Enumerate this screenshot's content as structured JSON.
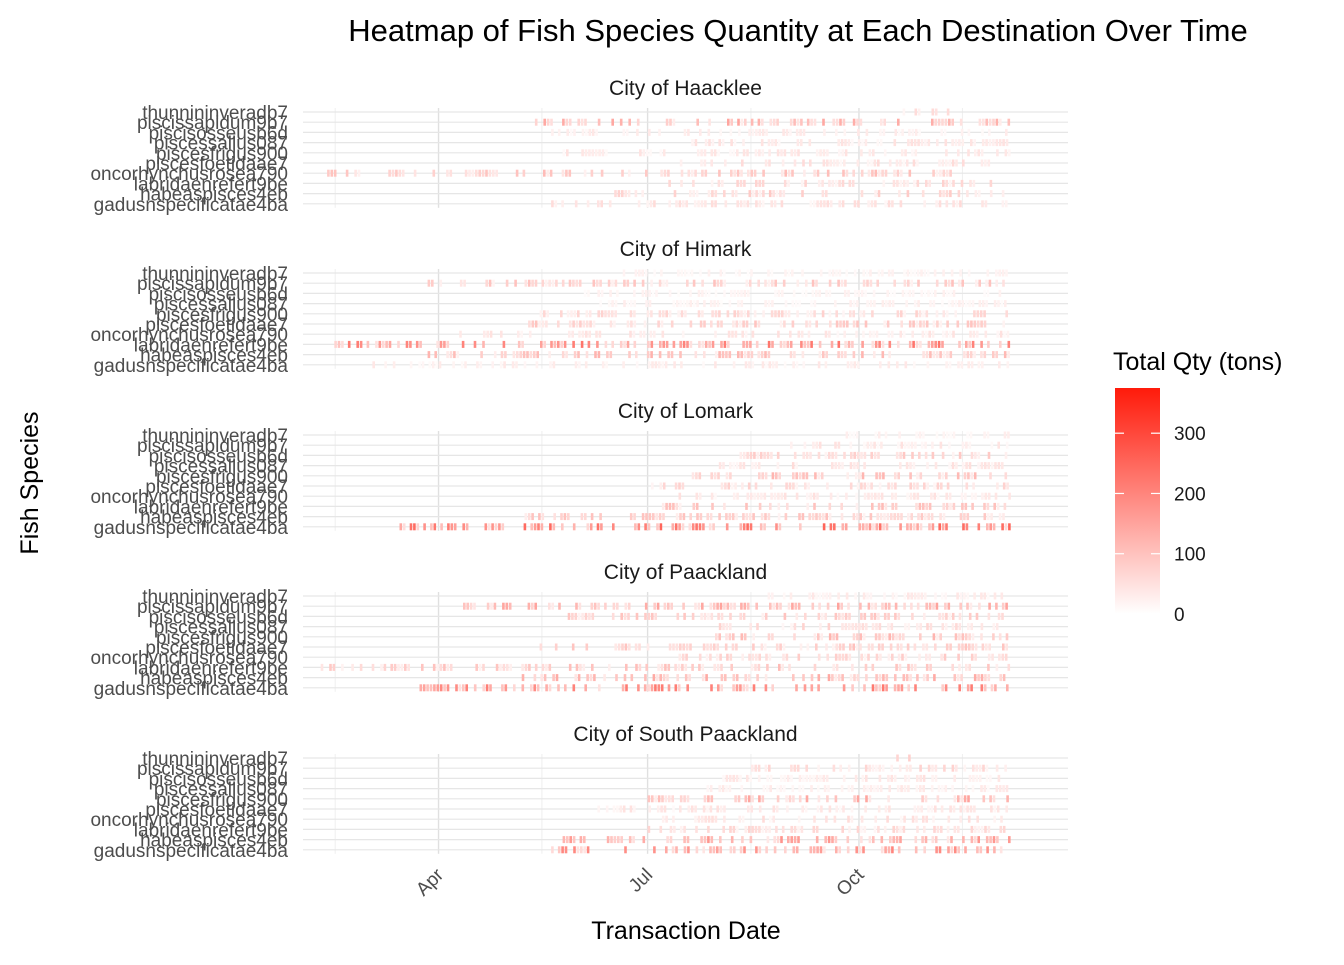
{
  "chart_data": {
    "type": "heatmap",
    "title": "Heatmap of Fish Species Quantity at Each Destination Over Time",
    "xlabel": "Transaction Date",
    "ylabel": "Fish Species",
    "x_tick_labels": [
      "Apr",
      "Jul",
      "Oct"
    ],
    "x_range": [
      "2035-02-01",
      "2035-12-31"
    ],
    "x_ticks": [
      "2035-04-01",
      "2035-07-01",
      "2035-10-01"
    ],
    "species": [
      "gadusnspecificatae4ba",
      "habeaspisces4eb",
      "labridaenrefert9be",
      "oncorhynchusrosea790",
      "piscesfoetidaae7",
      "piscesfrigus900",
      "piscessallus087",
      "piscisosseusb6d",
      "piscissapidum9b7",
      "thunnininveradb7"
    ],
    "legend": {
      "title": "Total Qty (tons)",
      "ticks": [
        0,
        100,
        200,
        300
      ],
      "min": 0,
      "max": 375,
      "low_color": "#ffffff",
      "high_color": "#ff1a0a",
      "placement": "right"
    },
    "panels": [
      {
        "name": "City of Haacklee",
        "active": [
          {
            "species": "gadusnspecificatae4ba",
            "from": "2035-05-20",
            "to": "2035-12-05",
            "level": 0.12
          },
          {
            "species": "habeaspisces4eb",
            "from": "2035-06-15",
            "to": "2035-12-05",
            "level": 0.18
          },
          {
            "species": "labridaenrefert9be",
            "from": "2035-07-10",
            "to": "2035-12-05",
            "level": 0.15
          },
          {
            "species": "oncorhynchusrosea790",
            "from": "2035-02-10",
            "to": "2035-11-10",
            "level": 0.22
          },
          {
            "species": "piscesfoetidaae7",
            "from": "2035-07-15",
            "to": "2035-12-05",
            "level": 0.12
          },
          {
            "species": "piscesfrigus900",
            "from": "2035-05-25",
            "to": "2035-12-05",
            "level": 0.1
          },
          {
            "species": "piscessallus087",
            "from": "2035-07-20",
            "to": "2035-12-05",
            "level": 0.1
          },
          {
            "species": "piscisosseusb6d",
            "from": "2035-05-20",
            "to": "2035-12-05",
            "level": 0.08
          },
          {
            "species": "piscissapidum9b7",
            "from": "2035-05-10",
            "to": "2035-12-05",
            "level": 0.3
          },
          {
            "species": "thunnininveradb7",
            "from": "2035-10-20",
            "to": "2035-11-10",
            "level": 0.15
          }
        ]
      },
      {
        "name": "City of Himark",
        "active": [
          {
            "species": "gadusnspecificatae4ba",
            "from": "2035-03-01",
            "to": "2035-12-05",
            "level": 0.08
          },
          {
            "species": "habeaspisces4eb",
            "from": "2035-03-25",
            "to": "2035-12-05",
            "level": 0.25
          },
          {
            "species": "labridaenrefert9be",
            "from": "2035-02-05",
            "to": "2035-12-05",
            "level": 0.45
          },
          {
            "species": "oncorhynchusrosea790",
            "from": "2035-04-10",
            "to": "2035-12-05",
            "level": 0.1
          },
          {
            "species": "piscesfoetidaae7",
            "from": "2035-05-10",
            "to": "2035-12-05",
            "level": 0.2
          },
          {
            "species": "piscesfrigus900",
            "from": "2035-05-15",
            "to": "2035-12-05",
            "level": 0.15
          },
          {
            "species": "piscessallus087",
            "from": "2035-06-10",
            "to": "2035-12-05",
            "level": 0.06
          },
          {
            "species": "piscisosseusb6d",
            "from": "2035-06-01",
            "to": "2035-12-05",
            "level": 0.05
          },
          {
            "species": "piscissapidum9b7",
            "from": "2035-03-25",
            "to": "2035-12-05",
            "level": 0.2
          },
          {
            "species": "thunnininveradb7",
            "from": "2035-06-15",
            "to": "2035-12-05",
            "level": 0.05
          }
        ]
      },
      {
        "name": "City of Lomark",
        "active": [
          {
            "species": "gadusnspecificatae4ba",
            "from": "2035-03-15",
            "to": "2035-12-05",
            "level": 0.5
          },
          {
            "species": "habeaspisces4eb",
            "from": "2035-05-01",
            "to": "2035-12-05",
            "level": 0.2
          },
          {
            "species": "labridaenrefert9be",
            "from": "2035-07-05",
            "to": "2035-12-05",
            "level": 0.22
          },
          {
            "species": "oncorhynchusrosea790",
            "from": "2035-07-10",
            "to": "2035-12-05",
            "level": 0.1
          },
          {
            "species": "piscesfoetidaae7",
            "from": "2035-07-01",
            "to": "2035-12-05",
            "level": 0.15
          },
          {
            "species": "piscesfrigus900",
            "from": "2035-07-15",
            "to": "2035-12-05",
            "level": 0.25
          },
          {
            "species": "piscessallus087",
            "from": "2035-08-01",
            "to": "2035-12-05",
            "level": 0.12
          },
          {
            "species": "piscisosseusb6d",
            "from": "2035-08-10",
            "to": "2035-12-05",
            "level": 0.18
          },
          {
            "species": "piscissapidum9b7",
            "from": "2035-09-01",
            "to": "2035-12-05",
            "level": 0.1
          },
          {
            "species": "thunnininveradb7",
            "from": "2035-09-20",
            "to": "2035-12-05",
            "level": 0.06
          }
        ]
      },
      {
        "name": "City of Paackland",
        "active": [
          {
            "species": "gadusnspecificatae4ba",
            "from": "2035-03-20",
            "to": "2035-12-05",
            "level": 0.45
          },
          {
            "species": "habeaspisces4eb",
            "from": "2035-05-05",
            "to": "2035-12-05",
            "level": 0.28
          },
          {
            "species": "labridaenrefert9be",
            "from": "2035-02-05",
            "to": "2035-12-05",
            "level": 0.22
          },
          {
            "species": "oncorhynchusrosea790",
            "from": "2035-07-10",
            "to": "2035-12-05",
            "level": 0.18
          },
          {
            "species": "piscesfoetidaae7",
            "from": "2035-05-15",
            "to": "2035-12-05",
            "level": 0.2
          },
          {
            "species": "piscesfrigus900",
            "from": "2035-07-20",
            "to": "2035-12-05",
            "level": 0.25
          },
          {
            "species": "piscessallus087",
            "from": "2035-08-01",
            "to": "2035-12-05",
            "level": 0.15
          },
          {
            "species": "piscisosseusb6d",
            "from": "2035-05-25",
            "to": "2035-12-05",
            "level": 0.2
          },
          {
            "species": "piscissapidum9b7",
            "from": "2035-04-05",
            "to": "2035-12-05",
            "level": 0.3
          },
          {
            "species": "thunnininveradb7",
            "from": "2035-08-20",
            "to": "2035-12-05",
            "level": 0.08
          }
        ]
      },
      {
        "name": "City of South Paackland",
        "active": [
          {
            "species": "gadusnspecificatae4ba",
            "from": "2035-05-20",
            "to": "2035-12-05",
            "level": 0.4
          },
          {
            "species": "habeaspisces4eb",
            "from": "2035-05-25",
            "to": "2035-12-05",
            "level": 0.35
          },
          {
            "species": "labridaenrefert9be",
            "from": "2035-07-01",
            "to": "2035-12-05",
            "level": 0.15
          },
          {
            "species": "oncorhynchusrosea790",
            "from": "2035-07-05",
            "to": "2035-12-05",
            "level": 0.12
          },
          {
            "species": "piscesfoetidaae7",
            "from": "2035-06-01",
            "to": "2035-12-05",
            "level": 0.1
          },
          {
            "species": "piscesfrigus900",
            "from": "2035-07-01",
            "to": "2035-12-05",
            "level": 0.3
          },
          {
            "species": "piscessallus087",
            "from": "2035-07-20",
            "to": "2035-12-05",
            "level": 0.08
          },
          {
            "species": "piscisosseusb6d",
            "from": "2035-08-01",
            "to": "2035-12-05",
            "level": 0.1
          },
          {
            "species": "piscissapidum9b7",
            "from": "2035-08-15",
            "to": "2035-12-05",
            "level": 0.15
          },
          {
            "species": "thunnininveradb7",
            "from": "2035-10-15",
            "to": "2035-10-25",
            "level": 0.2
          }
        ]
      }
    ]
  }
}
